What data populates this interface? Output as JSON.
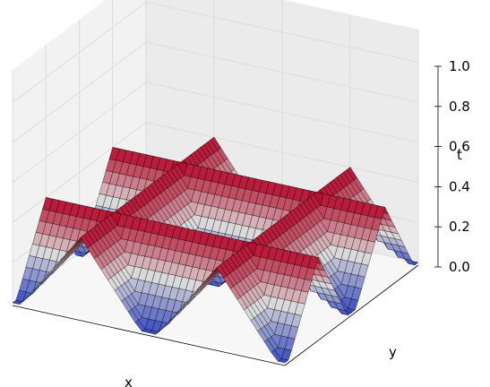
{
  "chart_data": {
    "type": "surface3d",
    "title": "",
    "xlabel": "x",
    "ylabel": "y",
    "zlabel": "t",
    "zlim": [
      0,
      1
    ],
    "zticks": [
      "0.0",
      "0.2",
      "0.4",
      "0.6",
      "0.8",
      "1.0"
    ],
    "colormap": "coolwarm",
    "grid": true,
    "shape": "two parallel triangular ridges along x crossed by two parallel triangular ridges along y, flat-topped near t = 0.4, base at t = 0",
    "ridges_along_x": [
      {
        "y_center": 0.25,
        "peak_t": 0.4
      },
      {
        "y_center": 0.75,
        "peak_t": 0.4
      }
    ],
    "ridges_along_y": [
      {
        "x_center": 0.25,
        "peak_t": 0.4
      },
      {
        "x_center": 0.75,
        "peak_t": 0.4
      }
    ],
    "colors": {
      "low": "#3b4cc0",
      "mid": "#dddcdc",
      "high": "#b40426",
      "pane": "#f2f2f2",
      "edge": "#000000"
    }
  }
}
